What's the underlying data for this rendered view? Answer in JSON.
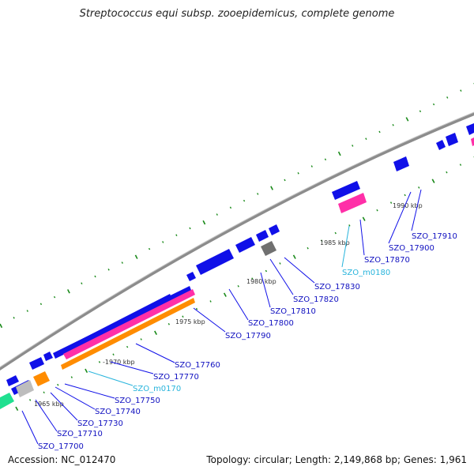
{
  "title": "Streptococcus equi subsp. zooepidemicus, complete genome",
  "accession_text": "Accession: NC_012470",
  "summary_text": "Topology: circular; Length: 2,149,868 bp; Genes: 1,961",
  "colors": {
    "backbone": "#8c8c8c",
    "cds": "#1010e8",
    "rrna": "#ff2fa8",
    "trna": "#ff8c00",
    "grey_feature": "#bdbdbd",
    "dark_feature": "#707070",
    "teal_feature": "#20e090",
    "tick": "#1a8a1a",
    "gene_label": "#1010c0",
    "ncrna_label": "#28b4dc"
  },
  "scale_labels": [
    "1965 kbp",
    "-1970 kbp",
    "1975 kbp",
    "1980 kbp",
    "1985 kbp",
    "1990 kbp"
  ],
  "gene_labels": [
    {
      "name": "SZO_17700",
      "type": "cds"
    },
    {
      "name": "SZO_17710",
      "type": "cds"
    },
    {
      "name": "SZO_17730",
      "type": "cds"
    },
    {
      "name": "SZO_17740",
      "type": "cds"
    },
    {
      "name": "SZO_17750",
      "type": "cds"
    },
    {
      "name": "SZO_m0170",
      "type": "ncrna"
    },
    {
      "name": "SZO_17770",
      "type": "cds"
    },
    {
      "name": "SZO_17760",
      "type": "cds"
    },
    {
      "name": "SZO_17790",
      "type": "cds"
    },
    {
      "name": "SZO_17800",
      "type": "cds"
    },
    {
      "name": "SZO_17810",
      "type": "cds"
    },
    {
      "name": "SZO_17820",
      "type": "cds"
    },
    {
      "name": "SZO_17830",
      "type": "cds"
    },
    {
      "name": "SZO_m0180",
      "type": "ncrna"
    },
    {
      "name": "SZO_17870",
      "type": "cds"
    },
    {
      "name": "SZO_17900",
      "type": "cds"
    },
    {
      "name": "SZO_17910",
      "type": "cds"
    }
  ]
}
